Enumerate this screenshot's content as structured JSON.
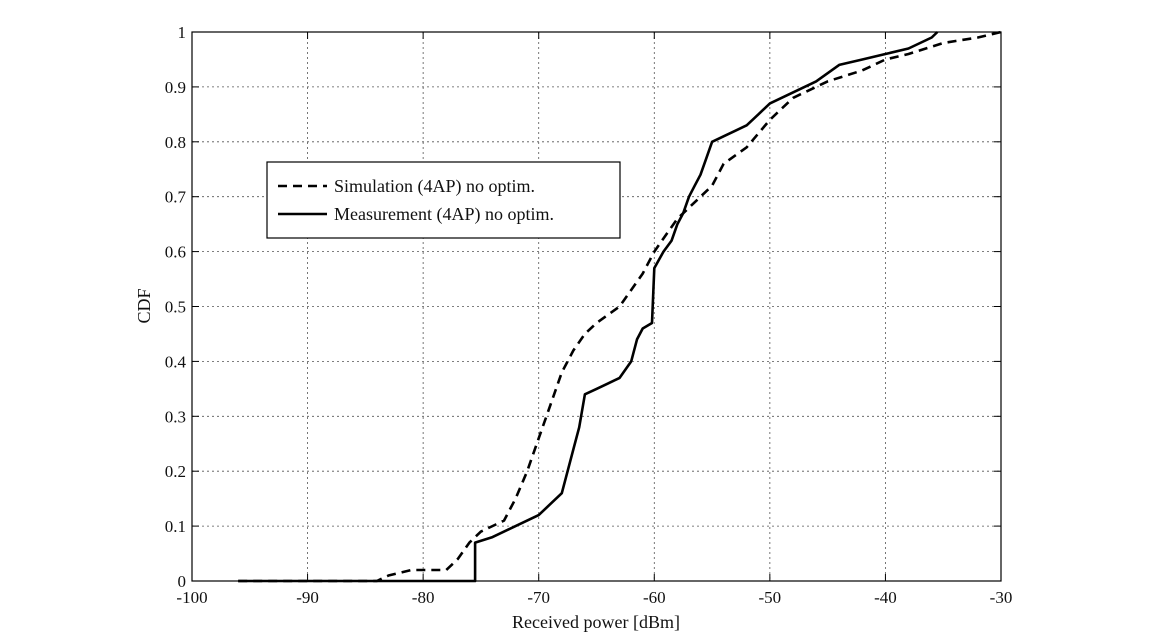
{
  "chart_data": {
    "type": "line",
    "title": "",
    "xlabel": "Received power [dBm]",
    "ylabel": "CDF",
    "xlim": [
      -100,
      -30
    ],
    "ylim": [
      0,
      1
    ],
    "xticks": [
      -100,
      -90,
      -80,
      -70,
      -60,
      -50,
      -40,
      -30
    ],
    "yticks": [
      0,
      0.1,
      0.2,
      0.3,
      0.4,
      0.5,
      0.6,
      0.7,
      0.8,
      0.9,
      1
    ],
    "xtick_labels": [
      "-100",
      "-90",
      "-80",
      "-70",
      "-60",
      "-50",
      "-40",
      "-30"
    ],
    "ytick_labels": [
      "0",
      "0.1",
      "0.2",
      "0.3",
      "0.4",
      "0.5",
      "0.6",
      "0.7",
      "0.8",
      "0.9",
      "1"
    ],
    "grid": true,
    "legend_position": "upper-left",
    "series": [
      {
        "name": "Simulation (4AP) no optim.",
        "style": "dashed",
        "color": "#000000",
        "x": [
          -96,
          -84,
          -83,
          -81,
          -78,
          -77,
          -76,
          -75,
          -73,
          -72,
          -71,
          -70,
          -69,
          -68,
          -67,
          -66,
          -65,
          -63,
          -62,
          -61,
          -60,
          -59,
          -58,
          -57,
          -56,
          -55,
          -54,
          -52,
          -50,
          -48,
          -45,
          -42,
          -40,
          -38,
          -35,
          -32,
          -30
        ],
        "y": [
          0,
          0,
          0.01,
          0.02,
          0.02,
          0.04,
          0.07,
          0.09,
          0.11,
          0.15,
          0.2,
          0.26,
          0.32,
          0.38,
          0.42,
          0.45,
          0.47,
          0.5,
          0.53,
          0.56,
          0.6,
          0.63,
          0.66,
          0.68,
          0.7,
          0.72,
          0.76,
          0.79,
          0.84,
          0.88,
          0.91,
          0.93,
          0.95,
          0.96,
          0.98,
          0.99,
          1.0
        ]
      },
      {
        "name": "Measurement (4AP) no optim.",
        "style": "solid",
        "color": "#000000",
        "x": [
          -96,
          -75.5,
          -75.5,
          -74,
          -72,
          -70,
          -69,
          -68,
          -67.5,
          -67,
          -66.5,
          -66,
          -65,
          -64,
          -63,
          -62,
          -61.5,
          -61,
          -60.2,
          -60,
          -59.2,
          -58.5,
          -58,
          -57.5,
          -57,
          -56.5,
          -56,
          -55.5,
          -55,
          -54,
          -53,
          -52,
          -51,
          -50.5,
          -50,
          -48,
          -46,
          -44,
          -42,
          -40,
          -38,
          -36,
          -35.5
        ],
        "y": [
          0,
          0,
          0.07,
          0.08,
          0.1,
          0.12,
          0.14,
          0.16,
          0.2,
          0.24,
          0.28,
          0.34,
          0.35,
          0.36,
          0.37,
          0.4,
          0.44,
          0.46,
          0.47,
          0.57,
          0.6,
          0.62,
          0.65,
          0.67,
          0.7,
          0.72,
          0.74,
          0.77,
          0.8,
          0.81,
          0.82,
          0.83,
          0.85,
          0.86,
          0.87,
          0.89,
          0.91,
          0.94,
          0.95,
          0.96,
          0.97,
          0.99,
          1.0
        ]
      }
    ]
  }
}
